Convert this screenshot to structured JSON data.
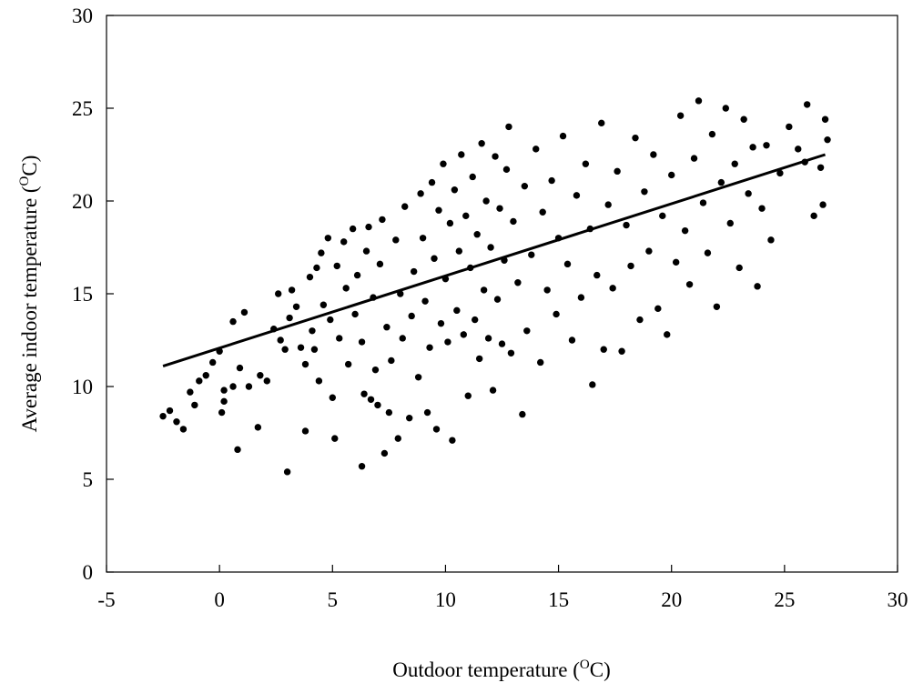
{
  "chart_data": {
    "type": "scatter",
    "title": "",
    "xlabel": {
      "prefix": "Outdoor temperature (",
      "sup": "O",
      "suffix": "C)"
    },
    "ylabel": {
      "prefix": "Average indoor temperature (",
      "sup": "O",
      "suffix": "C)"
    },
    "xlim": [
      -5,
      30
    ],
    "ylim": [
      0,
      30
    ],
    "xticks": [
      "-5",
      "0",
      "5",
      "10",
      "15",
      "20",
      "25",
      "30"
    ],
    "yticks": [
      "0",
      "5",
      "10",
      "15",
      "20",
      "25",
      "30"
    ],
    "grid": false,
    "legend": "none",
    "marker_color": "#000000",
    "fit_line": {
      "x": [
        -2.5,
        26.8
      ],
      "y": [
        11.1,
        22.5
      ]
    },
    "series": [
      {
        "points_sampled_from_figure": [
          [
            -2.5,
            8.4
          ],
          [
            -2.2,
            8.7
          ],
          [
            -1.9,
            8.1
          ],
          [
            -1.6,
            7.7
          ],
          [
            -1.3,
            9.7
          ],
          [
            -1.1,
            9.0
          ],
          [
            -0.9,
            10.3
          ],
          [
            -0.6,
            10.6
          ],
          [
            -0.3,
            11.3
          ],
          [
            0.0,
            11.9
          ],
          [
            0.2,
            9.2
          ],
          [
            0.2,
            9.8
          ],
          [
            0.1,
            8.6
          ],
          [
            0.6,
            10.0
          ],
          [
            0.6,
            13.5
          ],
          [
            0.9,
            11.0
          ],
          [
            0.8,
            6.6
          ],
          [
            1.1,
            14.0
          ],
          [
            1.3,
            10.0
          ],
          [
            1.7,
            7.8
          ],
          [
            1.8,
            10.6
          ],
          [
            2.1,
            10.3
          ],
          [
            2.4,
            13.1
          ],
          [
            2.6,
            15.0
          ],
          [
            2.7,
            12.5
          ],
          [
            2.9,
            12.0
          ],
          [
            3.0,
            5.4
          ],
          [
            3.1,
            13.7
          ],
          [
            3.2,
            15.2
          ],
          [
            3.4,
            14.3
          ],
          [
            3.6,
            12.1
          ],
          [
            3.8,
            11.2
          ],
          [
            3.8,
            7.6
          ],
          [
            4.0,
            15.9
          ],
          [
            4.1,
            13.0
          ],
          [
            4.2,
            12.0
          ],
          [
            4.3,
            16.4
          ],
          [
            4.4,
            10.3
          ],
          [
            4.5,
            17.2
          ],
          [
            4.6,
            14.4
          ],
          [
            4.8,
            18.0
          ],
          [
            4.9,
            13.6
          ],
          [
            5.0,
            9.4
          ],
          [
            5.1,
            7.2
          ],
          [
            5.2,
            16.5
          ],
          [
            5.3,
            12.6
          ],
          [
            5.5,
            17.8
          ],
          [
            5.6,
            15.3
          ],
          [
            5.7,
            11.2
          ],
          [
            5.9,
            18.5
          ],
          [
            6.0,
            13.9
          ],
          [
            6.1,
            16.0
          ],
          [
            6.3,
            5.7
          ],
          [
            6.3,
            12.4
          ],
          [
            6.4,
            9.6
          ],
          [
            6.5,
            17.3
          ],
          [
            6.6,
            18.6
          ],
          [
            6.7,
            9.3
          ],
          [
            6.8,
            14.8
          ],
          [
            6.9,
            10.9
          ],
          [
            7.0,
            9.0
          ],
          [
            7.1,
            16.6
          ],
          [
            7.2,
            19.0
          ],
          [
            7.3,
            6.4
          ],
          [
            7.4,
            13.2
          ],
          [
            7.5,
            8.6
          ],
          [
            7.6,
            11.4
          ],
          [
            7.8,
            17.9
          ],
          [
            7.9,
            7.2
          ],
          [
            8.0,
            15.0
          ],
          [
            8.1,
            12.6
          ],
          [
            8.2,
            19.7
          ],
          [
            8.4,
            8.3
          ],
          [
            8.5,
            13.8
          ],
          [
            8.6,
            16.2
          ],
          [
            8.8,
            10.5
          ],
          [
            8.9,
            20.4
          ],
          [
            9.0,
            18.0
          ],
          [
            9.1,
            14.6
          ],
          [
            9.2,
            8.6
          ],
          [
            9.3,
            12.1
          ],
          [
            9.4,
            21.0
          ],
          [
            9.5,
            16.9
          ],
          [
            9.6,
            7.7
          ],
          [
            9.7,
            19.5
          ],
          [
            9.8,
            13.4
          ],
          [
            9.9,
            22.0
          ],
          [
            10.0,
            15.8
          ],
          [
            10.1,
            12.4
          ],
          [
            10.2,
            18.8
          ],
          [
            10.3,
            7.1
          ],
          [
            10.4,
            20.6
          ],
          [
            10.5,
            14.1
          ],
          [
            10.6,
            17.3
          ],
          [
            10.7,
            22.5
          ],
          [
            10.8,
            12.8
          ],
          [
            10.9,
            19.2
          ],
          [
            11.0,
            9.5
          ],
          [
            11.1,
            16.4
          ],
          [
            11.2,
            21.3
          ],
          [
            11.3,
            13.6
          ],
          [
            11.4,
            18.2
          ],
          [
            11.5,
            11.5
          ],
          [
            11.6,
            23.1
          ],
          [
            11.7,
            15.2
          ],
          [
            11.8,
            20.0
          ],
          [
            11.9,
            12.6
          ],
          [
            12.0,
            17.5
          ],
          [
            12.1,
            9.8
          ],
          [
            12.2,
            22.4
          ],
          [
            12.3,
            14.7
          ],
          [
            12.4,
            19.6
          ],
          [
            12.5,
            12.3
          ],
          [
            12.6,
            16.8
          ],
          [
            12.7,
            21.7
          ],
          [
            12.8,
            24.0
          ],
          [
            12.9,
            11.8
          ],
          [
            13.0,
            18.9
          ],
          [
            13.2,
            15.6
          ],
          [
            13.4,
            8.5
          ],
          [
            13.5,
            20.8
          ],
          [
            13.6,
            13.0
          ],
          [
            13.8,
            17.1
          ],
          [
            14.0,
            22.8
          ],
          [
            14.2,
            11.3
          ],
          [
            14.3,
            19.4
          ],
          [
            14.5,
            15.2
          ],
          [
            14.7,
            21.1
          ],
          [
            14.9,
            13.9
          ],
          [
            15.0,
            18.0
          ],
          [
            15.2,
            23.5
          ],
          [
            15.4,
            16.6
          ],
          [
            15.6,
            12.5
          ],
          [
            15.8,
            20.3
          ],
          [
            16.0,
            14.8
          ],
          [
            16.2,
            22.0
          ],
          [
            16.4,
            18.5
          ],
          [
            16.5,
            10.1
          ],
          [
            16.7,
            16.0
          ],
          [
            16.9,
            24.2
          ],
          [
            17.0,
            12.0
          ],
          [
            17.2,
            19.8
          ],
          [
            17.4,
            15.3
          ],
          [
            17.6,
            21.6
          ],
          [
            17.8,
            11.9
          ],
          [
            18.0,
            18.7
          ],
          [
            18.2,
            16.5
          ],
          [
            18.4,
            23.4
          ],
          [
            18.6,
            13.6
          ],
          [
            18.8,
            20.5
          ],
          [
            19.0,
            17.3
          ],
          [
            19.2,
            22.5
          ],
          [
            19.4,
            14.2
          ],
          [
            19.6,
            19.2
          ],
          [
            19.8,
            12.8
          ],
          [
            20.0,
            21.4
          ],
          [
            20.2,
            16.7
          ],
          [
            20.4,
            24.6
          ],
          [
            20.6,
            18.4
          ],
          [
            20.8,
            15.5
          ],
          [
            21.0,
            22.3
          ],
          [
            21.2,
            25.4
          ],
          [
            21.4,
            19.9
          ],
          [
            21.6,
            17.2
          ],
          [
            21.8,
            23.6
          ],
          [
            22.0,
            14.3
          ],
          [
            22.2,
            21.0
          ],
          [
            22.4,
            25.0
          ],
          [
            22.6,
            18.8
          ],
          [
            22.8,
            22.0
          ],
          [
            23.0,
            16.4
          ],
          [
            23.2,
            24.4
          ],
          [
            23.4,
            20.4
          ],
          [
            23.6,
            22.9
          ],
          [
            23.8,
            15.4
          ],
          [
            24.0,
            19.6
          ],
          [
            24.2,
            23.0
          ],
          [
            24.4,
            17.9
          ],
          [
            24.8,
            21.5
          ],
          [
            25.2,
            24.0
          ],
          [
            25.6,
            22.8
          ],
          [
            26.0,
            25.2
          ],
          [
            26.3,
            19.2
          ],
          [
            26.6,
            21.8
          ],
          [
            26.8,
            24.4
          ],
          [
            26.9,
            23.3
          ],
          [
            26.7,
            19.8
          ],
          [
            25.9,
            22.1
          ]
        ]
      }
    ]
  }
}
